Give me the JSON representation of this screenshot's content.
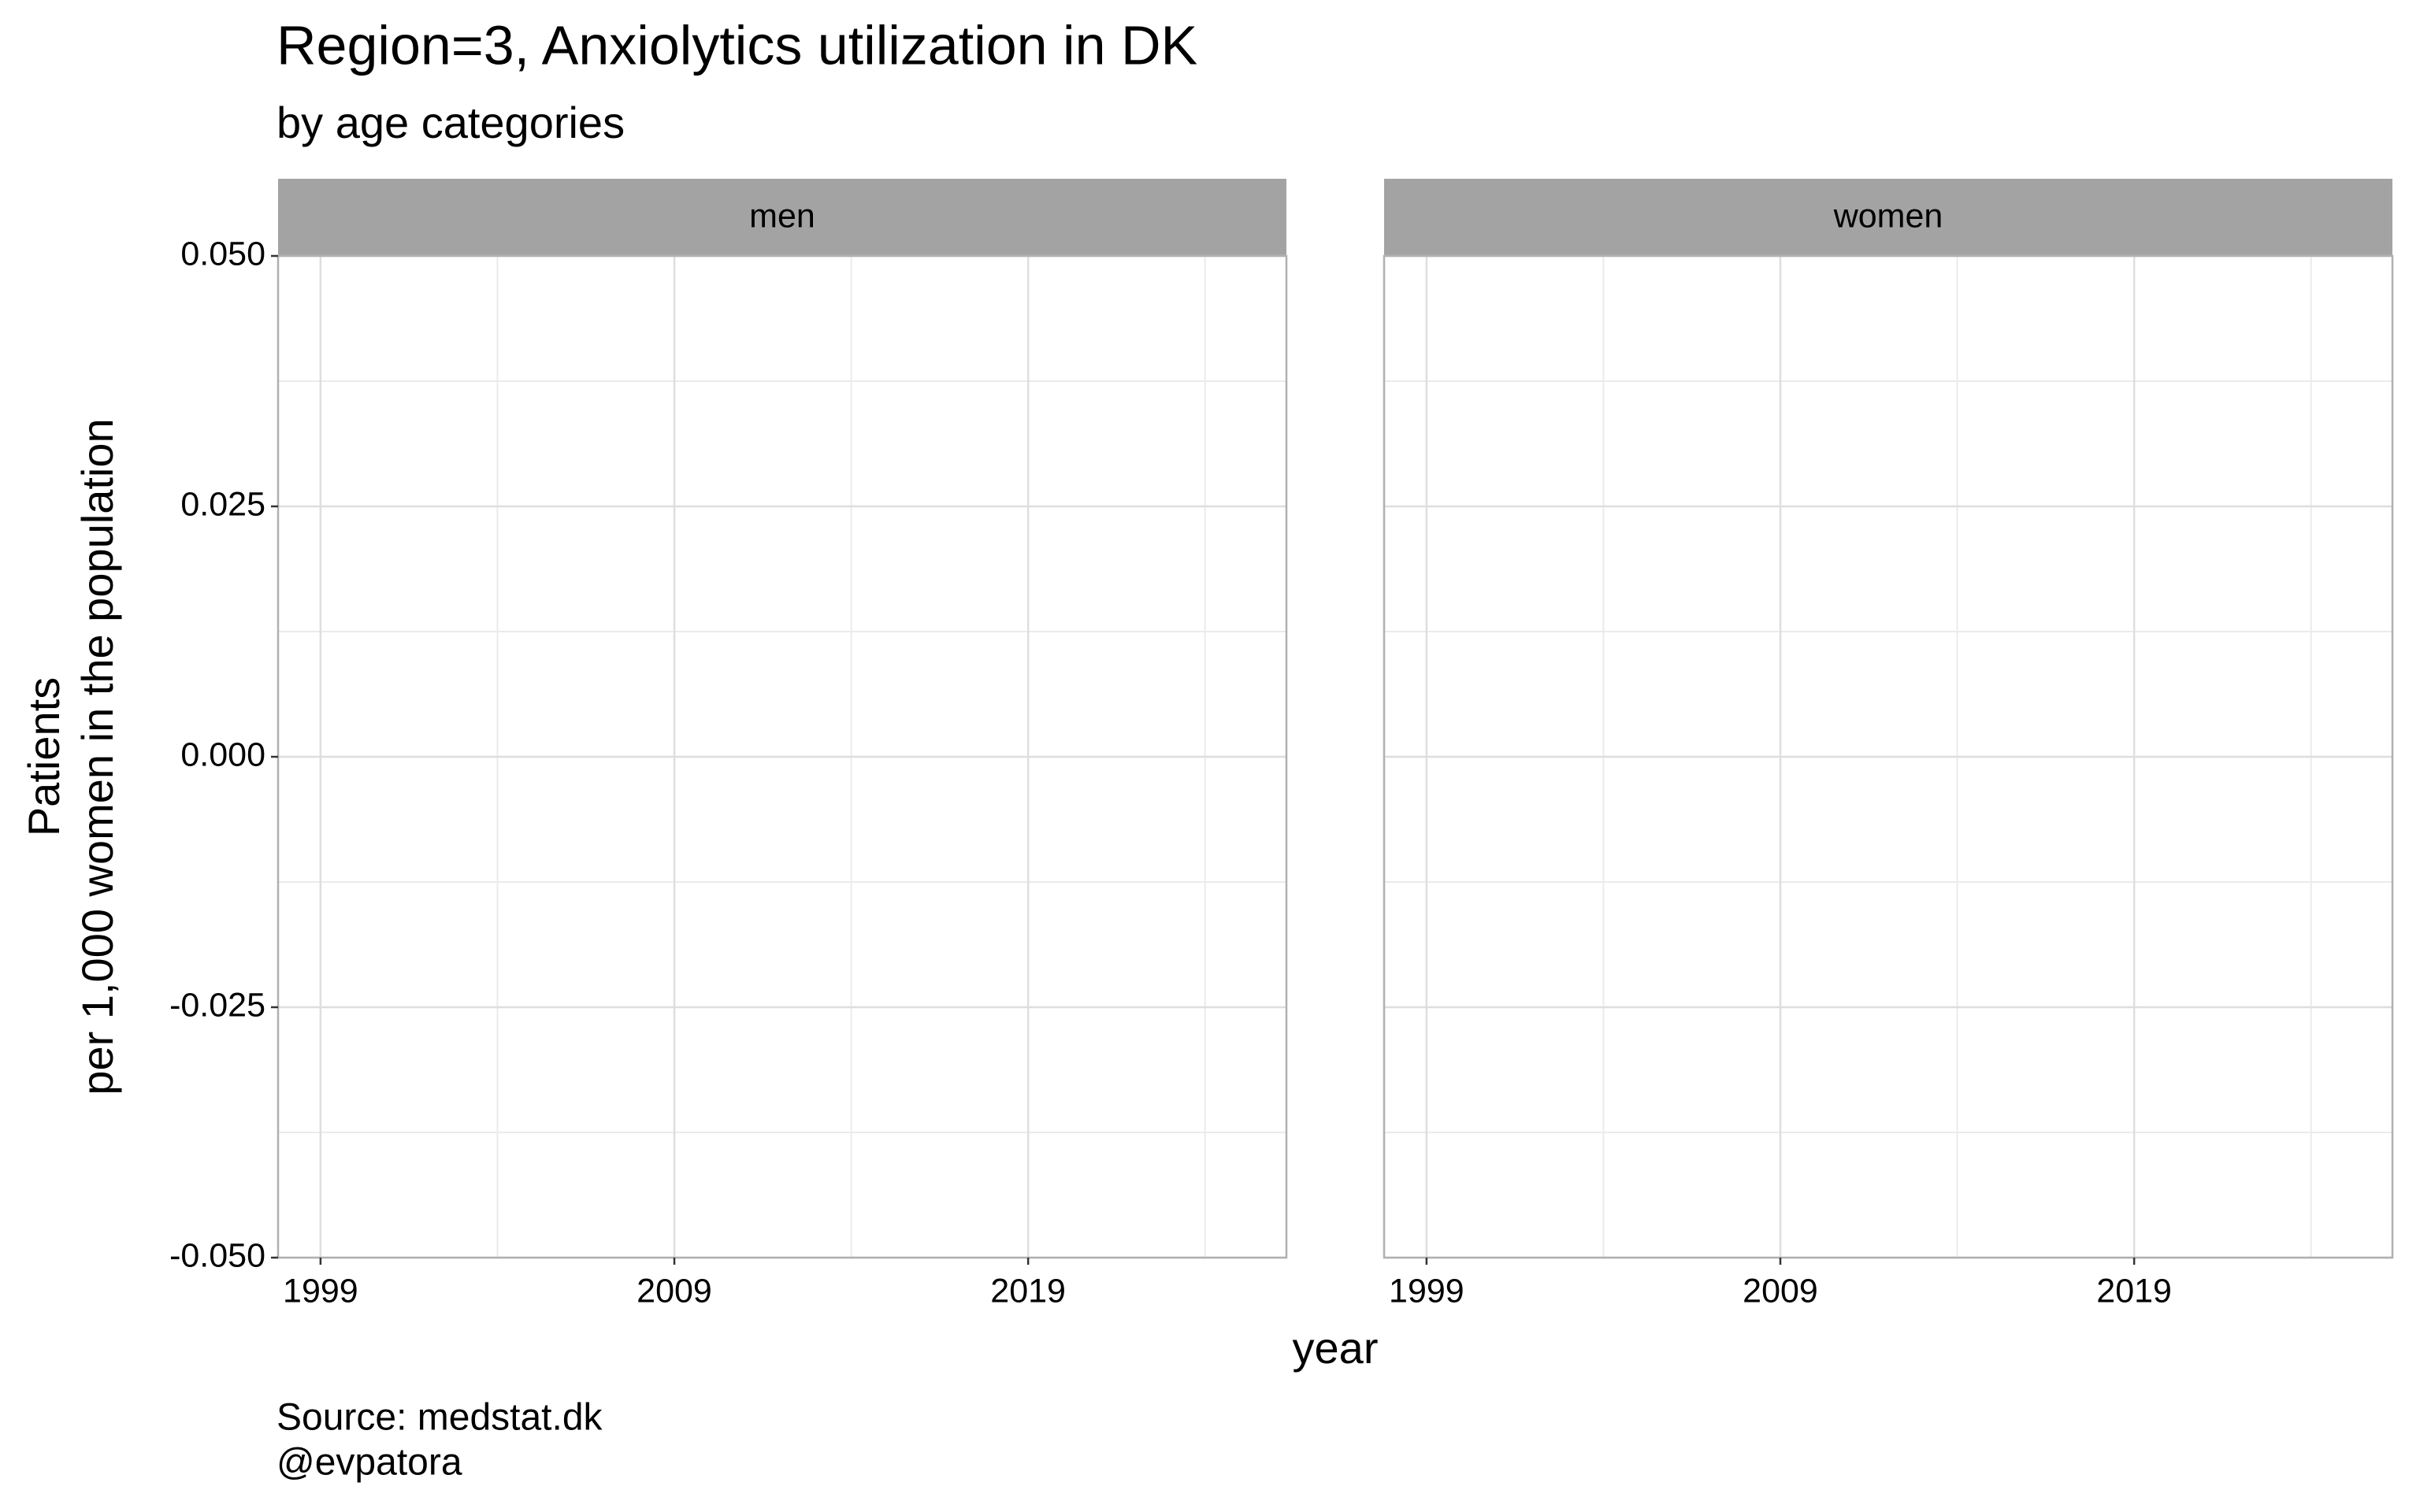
{
  "chart_data": {
    "type": "line",
    "title": "Region=3, Anxiolytics utilization in DK",
    "subtitle": "by age categories",
    "facets": [
      "men",
      "women"
    ],
    "xlabel": "year",
    "ylabel": [
      "Patients",
      "per 1,000 women in the population"
    ],
    "caption": [
      "Source: medstat.dk",
      "@evpatora"
    ],
    "xlim": [
      1997.8,
      2026.3
    ],
    "xticks": [
      1999,
      2009,
      2019
    ],
    "ylim": [
      -0.05,
      0.05
    ],
    "yticks": [
      {
        "value": -0.05,
        "label": "-0.050"
      },
      {
        "value": -0.025,
        "label": "-0.025"
      },
      {
        "value": 0,
        "label": "0.000"
      },
      {
        "value": 0.025,
        "label": "0.025"
      },
      {
        "value": 0.05,
        "label": "0.050"
      }
    ],
    "grid": true
  }
}
